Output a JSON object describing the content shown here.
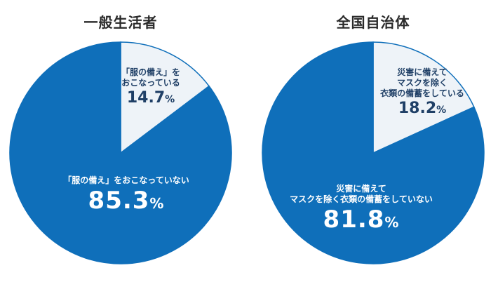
{
  "colors": {
    "major": "#0f6fba",
    "minor": "#eef3f8",
    "stroke": "#0f6fba"
  },
  "chart_data": [
    {
      "type": "pie",
      "title": "一般生活者",
      "slices": [
        {
          "label": "「服の備え」をおこなっている",
          "value": 14.7,
          "display": "14.7",
          "unit": "%"
        },
        {
          "label": "「服の備え」をおこなっていない",
          "value": 85.3,
          "display": "85.3",
          "unit": "%"
        }
      ]
    },
    {
      "type": "pie",
      "title": "全国自治体",
      "slices": [
        {
          "label": "災害に備えてマスクを除く衣類の備蓄をしている",
          "value": 18.2,
          "display": "18.2",
          "unit": "%"
        },
        {
          "label": "災害に備えてマスクを除く衣類の備蓄をしていない",
          "value": 81.8,
          "display": "81.8",
          "unit": "%"
        }
      ]
    }
  ],
  "labels": {
    "left_minor_lines": [
      "「服の備え」を",
      "おこなっている"
    ],
    "left_major_lines": [
      "「服の備え」をおこなっていない"
    ],
    "right_minor_lines": [
      "災害に備えて",
      "マスクを除く",
      "衣類の備蓄をしている"
    ],
    "right_major_lines": [
      "災害に備えて",
      "マスクを除く衣類の備蓄をしていない"
    ]
  }
}
